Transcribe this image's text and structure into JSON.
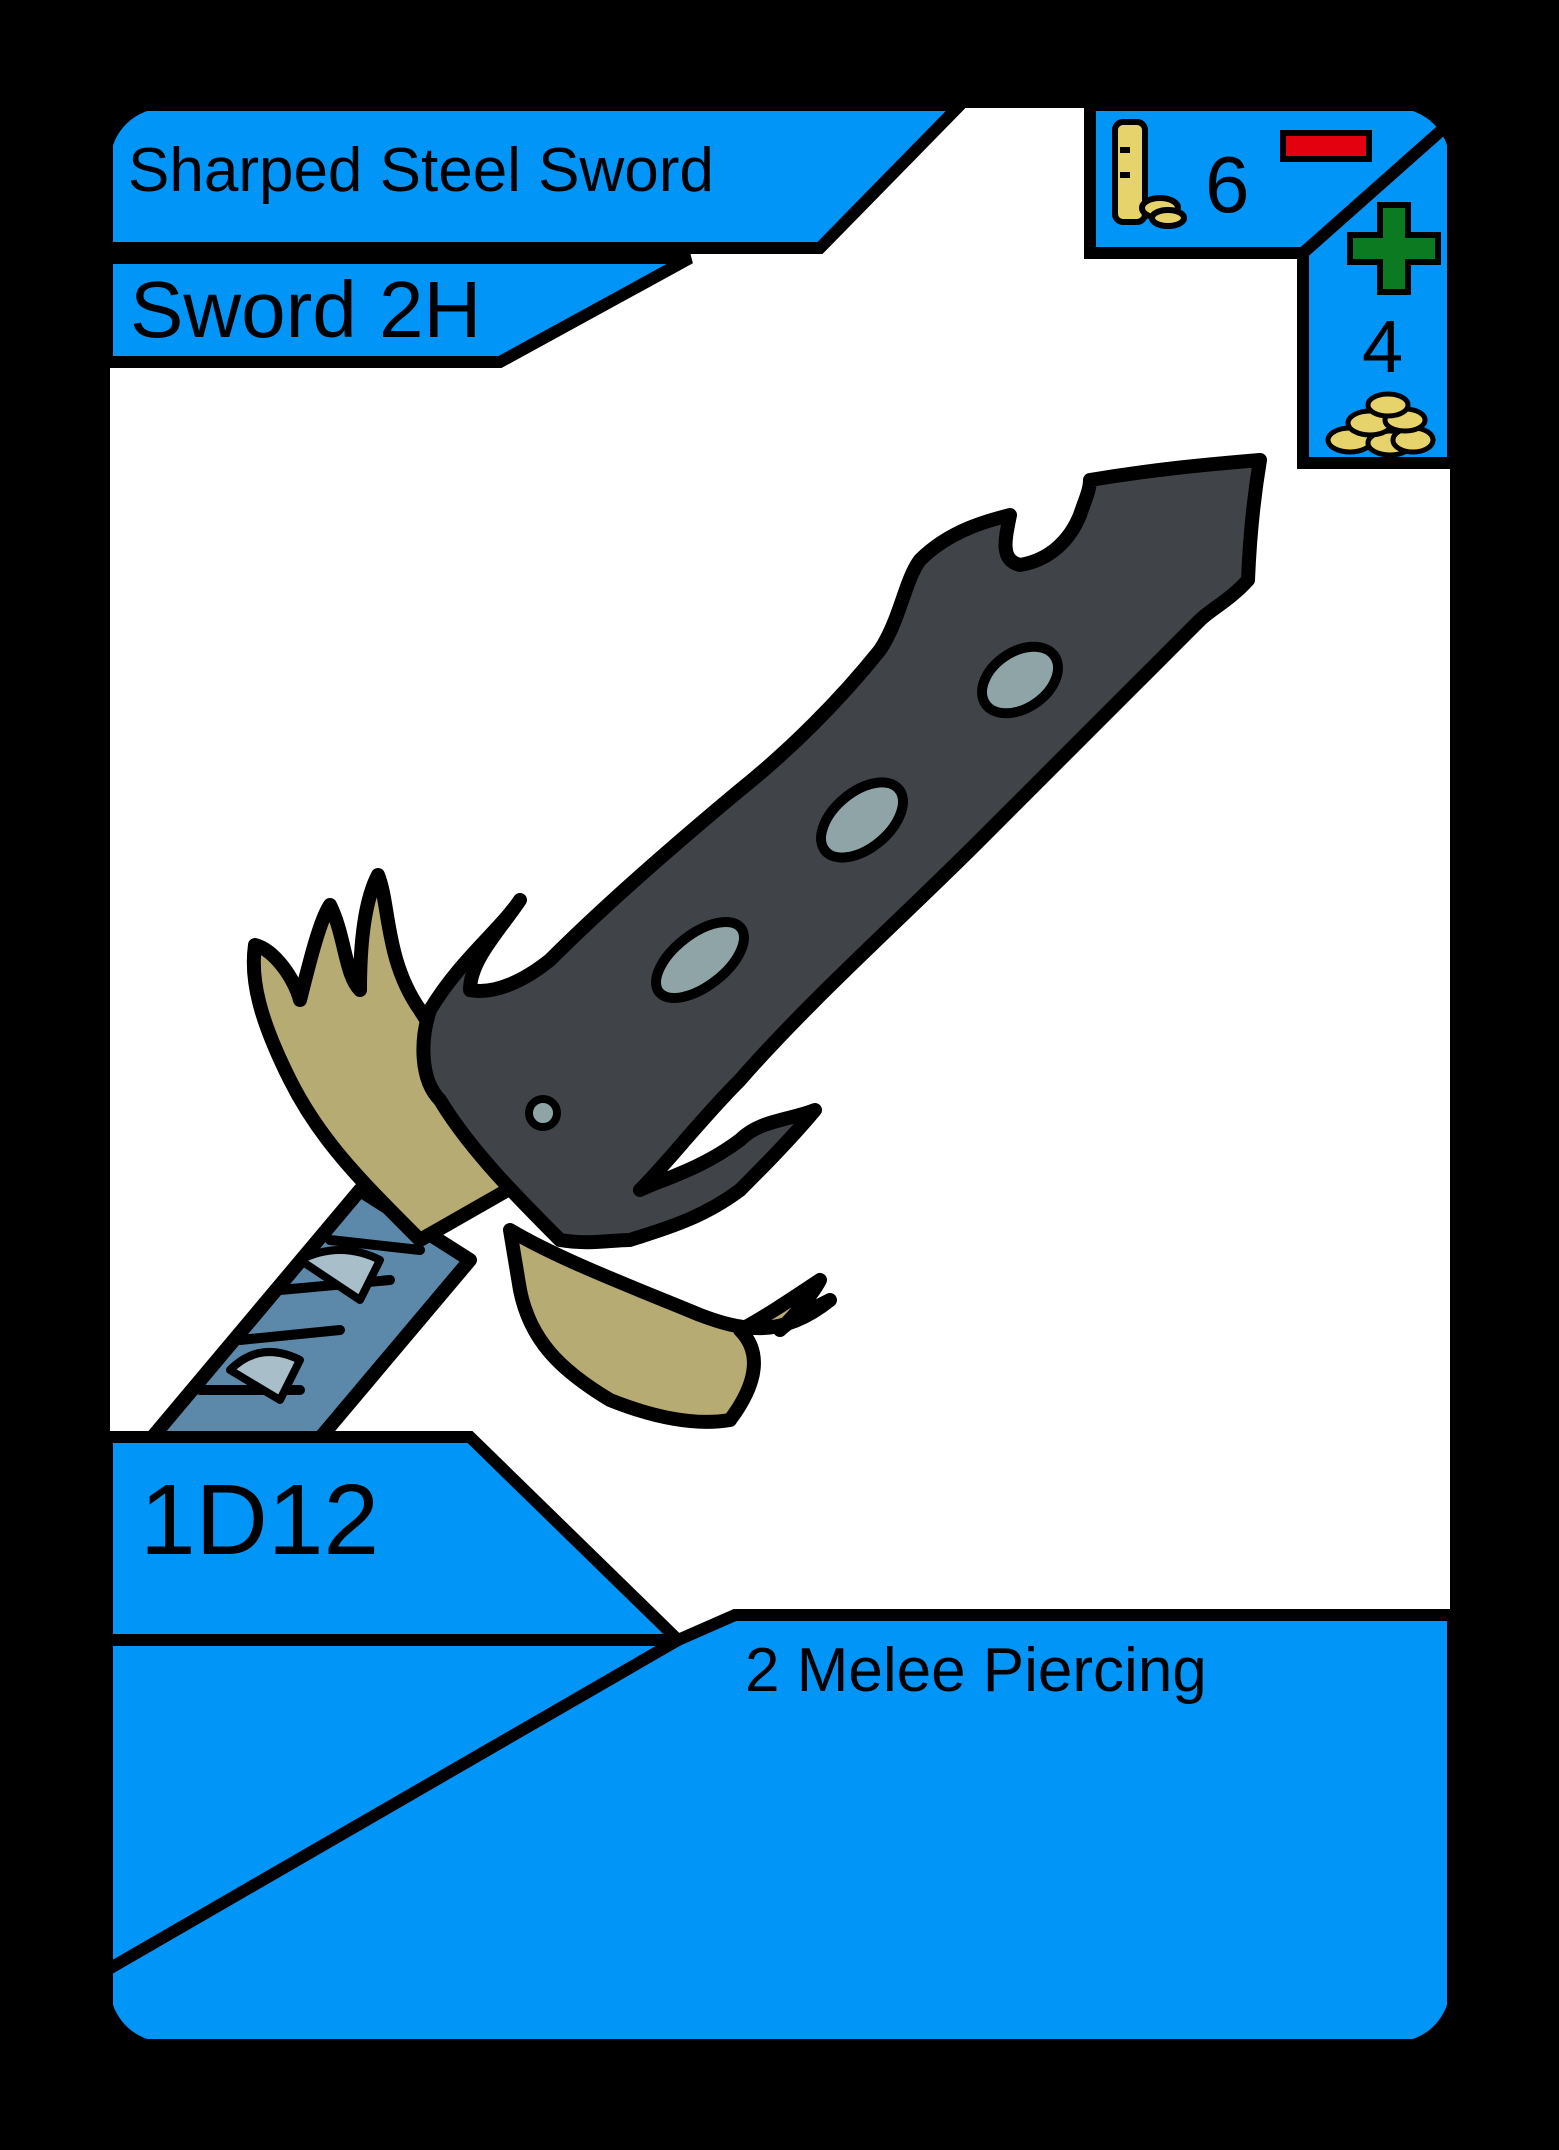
{
  "card": {
    "name": "Sharped Steel Sword",
    "type": "Sword 2H",
    "cost": "6",
    "sell_value": "4",
    "damage": "1D12",
    "attack": "2 Melee Piercing"
  },
  "colors": {
    "frame": "#000000",
    "panel_blue": "#0095f7",
    "art_background": "#ffffff",
    "minus_red": "#e3000f",
    "plus_green": "#0c7a21",
    "gold": "#e6d36b",
    "blade_dark": "#404347",
    "blade_gem": "#8ea4a6",
    "guard_tan": "#b6ab72",
    "grip_blue": "#5c88aa"
  },
  "icons": {
    "cost": "gold-bar-icon",
    "minus": "minus-icon",
    "plus": "plus-icon",
    "sell": "gold-coins-icon"
  }
}
